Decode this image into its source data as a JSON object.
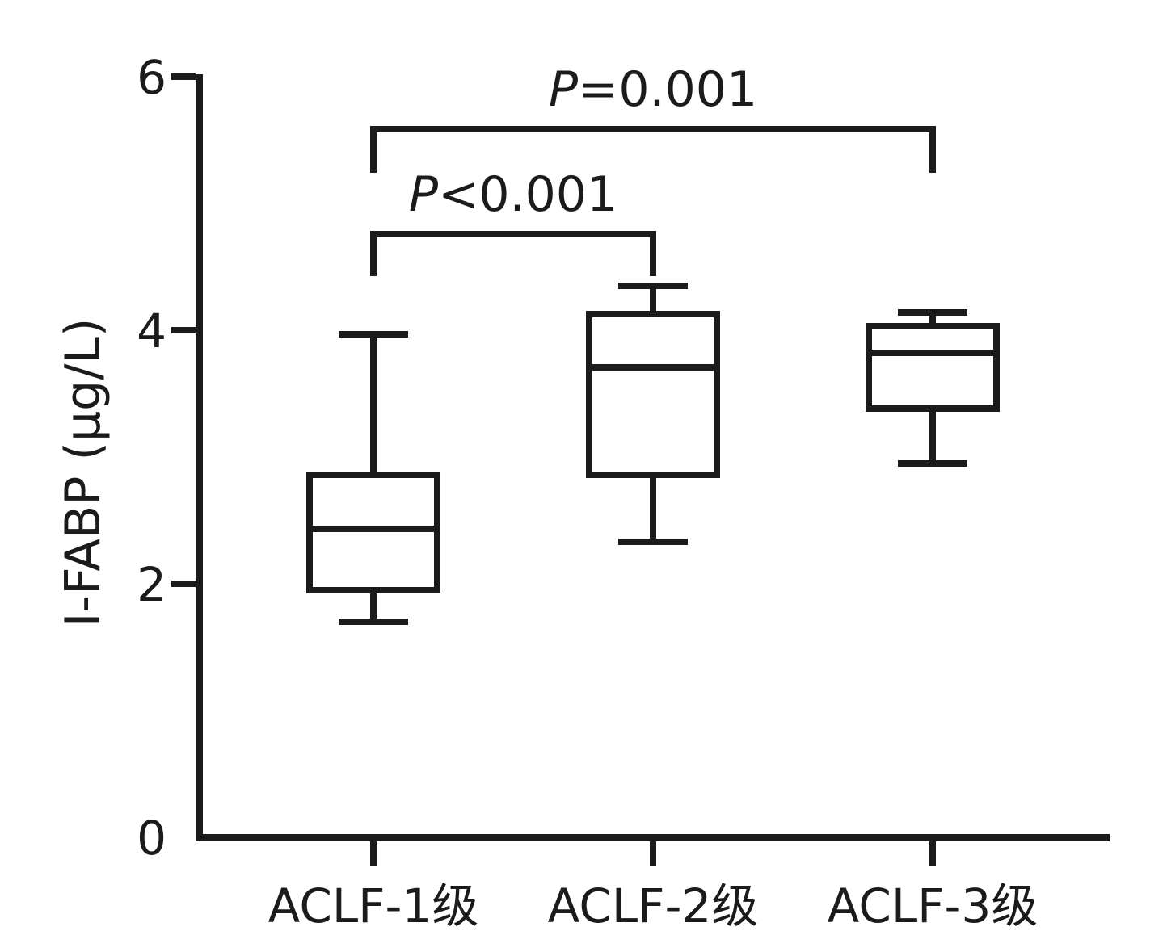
{
  "figure": {
    "background": "#ffffff",
    "line_color": "#1b1b1b"
  },
  "chart_data": {
    "type": "box",
    "title": "",
    "xlabel": "",
    "ylabel": "I-FABP (μg/L)",
    "ylim": [
      0,
      6
    ],
    "yticks": [
      "0",
      "2",
      "4",
      "6"
    ],
    "ytick_values": [
      0,
      2,
      4,
      6
    ],
    "grid": false,
    "legend": false,
    "categories": [
      "ACLF-1级",
      "ACLF-2级",
      "ACLF-3级"
    ],
    "boxes": [
      {
        "category": "ACLF-1级",
        "whisker_low": 1.7,
        "q1": 1.95,
        "median": 2.43,
        "q3": 2.86,
        "whisker_high": 3.97
      },
      {
        "category": "ACLF-2级",
        "whisker_low": 2.33,
        "q1": 2.86,
        "median": 3.71,
        "q3": 4.13,
        "whisker_high": 4.35
      },
      {
        "category": "ACLF-3级",
        "whisker_low": 2.95,
        "q1": 3.38,
        "median": 3.82,
        "q3": 4.03,
        "whisker_high": 4.14
      }
    ],
    "annotations": [
      {
        "label": "P<0.001",
        "p_symbol": "P",
        "p_rest": "<0.001",
        "from_index": 0,
        "to_index": 1
      },
      {
        "label": "P=0.001",
        "p_symbol": "P",
        "p_rest": "=0.001",
        "from_index": 0,
        "to_index": 2
      }
    ]
  }
}
